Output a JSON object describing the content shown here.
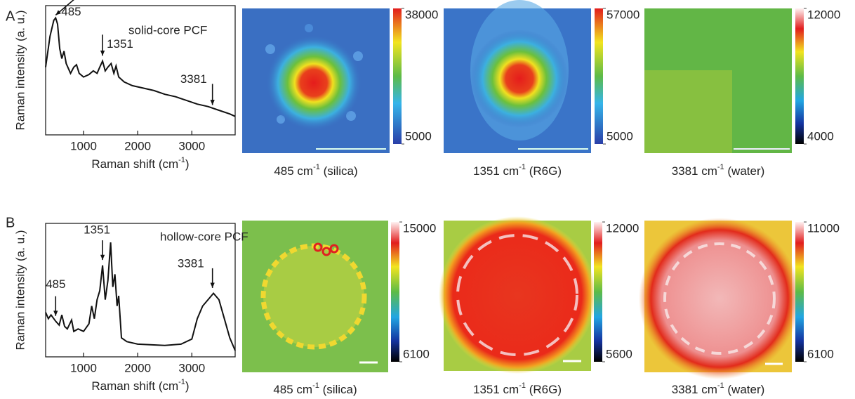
{
  "chart_data": [
    {
      "type": "line",
      "label": "A",
      "title": "solid-core PCF",
      "y_label": "Raman intensity (a. u.)",
      "x_label": {
        "text": "Raman shift (cm",
        "sup": "-1",
        "end": ")"
      },
      "x": [
        300,
        380,
        450,
        485,
        520,
        560,
        600,
        640,
        680,
        760,
        820,
        870,
        920,
        1000,
        1100,
        1180,
        1250,
        1300,
        1351,
        1400,
        1450,
        1510,
        1560,
        1600,
        1650,
        1750,
        1900,
        2100,
        2300,
        2500,
        2700,
        2900,
        3100,
        3300,
        3500,
        3700,
        3800
      ],
      "values": [
        0.55,
        0.8,
        0.93,
        0.95,
        0.9,
        0.7,
        0.62,
        0.68,
        0.58,
        0.5,
        0.55,
        0.57,
        0.5,
        0.47,
        0.49,
        0.52,
        0.5,
        0.55,
        0.6,
        0.52,
        0.55,
        0.58,
        0.5,
        0.56,
        0.47,
        0.43,
        0.4,
        0.38,
        0.36,
        0.33,
        0.31,
        0.28,
        0.25,
        0.23,
        0.2,
        0.17,
        0.15
      ],
      "xlim": [
        300,
        3800
      ],
      "xticks": [
        1000,
        2000,
        3000
      ],
      "ylim": [
        0,
        1.05
      ],
      "color": "#111111",
      "annotations": [
        {
          "text": "485",
          "x": 485,
          "y": 0.95
        },
        {
          "text": "1351",
          "x": 1351,
          "y": 0.62
        },
        {
          "text": "3381",
          "x": 3381,
          "y": 0.22
        }
      ]
    },
    {
      "type": "image",
      "caption": {
        "text": "485 cm",
        "sup": "-1",
        "end": " (silica)"
      },
      "colormap": "jet",
      "clim": [
        5000,
        38000
      ],
      "cticks": [
        5000,
        38000
      ]
    },
    {
      "type": "image",
      "caption": {
        "text": "1351 cm",
        "sup": "-1",
        "end": " (R6G)"
      },
      "colormap": "jet",
      "clim": [
        5000,
        57000
      ],
      "cticks": [
        5000,
        57000
      ]
    },
    {
      "type": "image",
      "caption": {
        "text": "3381 cm",
        "sup": "-1",
        "end": " (water)"
      },
      "colormap": "jet-white",
      "clim": [
        4000,
        12000
      ],
      "cticks": [
        4000,
        12000
      ]
    },
    {
      "type": "line",
      "label": "B",
      "title": "hollow-core PCF",
      "y_label": "Raman intensity (a. u.)",
      "x_label": {
        "text": "Raman shift (cm",
        "sup": "-1",
        "end": ")"
      },
      "x": [
        300,
        350,
        400,
        485,
        550,
        600,
        650,
        700,
        780,
        820,
        900,
        1000,
        1100,
        1150,
        1200,
        1250,
        1300,
        1351,
        1400,
        1450,
        1500,
        1540,
        1580,
        1620,
        1650,
        1700,
        1800,
        2000,
        2500,
        2800,
        3000,
        3100,
        3200,
        3300,
        3400,
        3500,
        3600,
        3700,
        3800
      ],
      "values": [
        0.35,
        0.3,
        0.33,
        0.28,
        0.25,
        0.33,
        0.24,
        0.22,
        0.29,
        0.2,
        0.22,
        0.2,
        0.26,
        0.4,
        0.3,
        0.45,
        0.52,
        0.72,
        0.45,
        0.6,
        0.9,
        0.55,
        0.65,
        0.4,
        0.48,
        0.15,
        0.12,
        0.1,
        0.09,
        0.1,
        0.14,
        0.3,
        0.4,
        0.45,
        0.5,
        0.45,
        0.3,
        0.15,
        0.05
      ],
      "xlim": [
        300,
        3800
      ],
      "xticks": [
        1000,
        2000,
        3000
      ],
      "ylim": [
        0,
        1.05
      ],
      "color": "#111111",
      "annotations": [
        {
          "text": "485",
          "x": 485,
          "y": 0.3
        },
        {
          "text": "1351",
          "x": 1351,
          "y": 0.74
        },
        {
          "text": "3381",
          "x": 3381,
          "y": 0.52
        }
      ]
    },
    {
      "type": "image",
      "caption": {
        "text": "485 cm",
        "sup": "-1",
        "end": " (silica)"
      },
      "colormap": "jet-white",
      "clim": [
        6100,
        15000
      ],
      "cticks": [
        6100,
        15000
      ]
    },
    {
      "type": "image",
      "caption": {
        "text": "1351 cm",
        "sup": "-1",
        "end": " (R6G)"
      },
      "colormap": "jet-white",
      "clim": [
        5600,
        12000
      ],
      "cticks": [
        5600,
        12000
      ]
    },
    {
      "type": "image",
      "caption": {
        "text": "3381 cm",
        "sup": "-1",
        "end": " (water)"
      },
      "colormap": "jet-white",
      "clim": [
        6100,
        11000
      ],
      "cticks": [
        6100,
        11000
      ]
    }
  ]
}
